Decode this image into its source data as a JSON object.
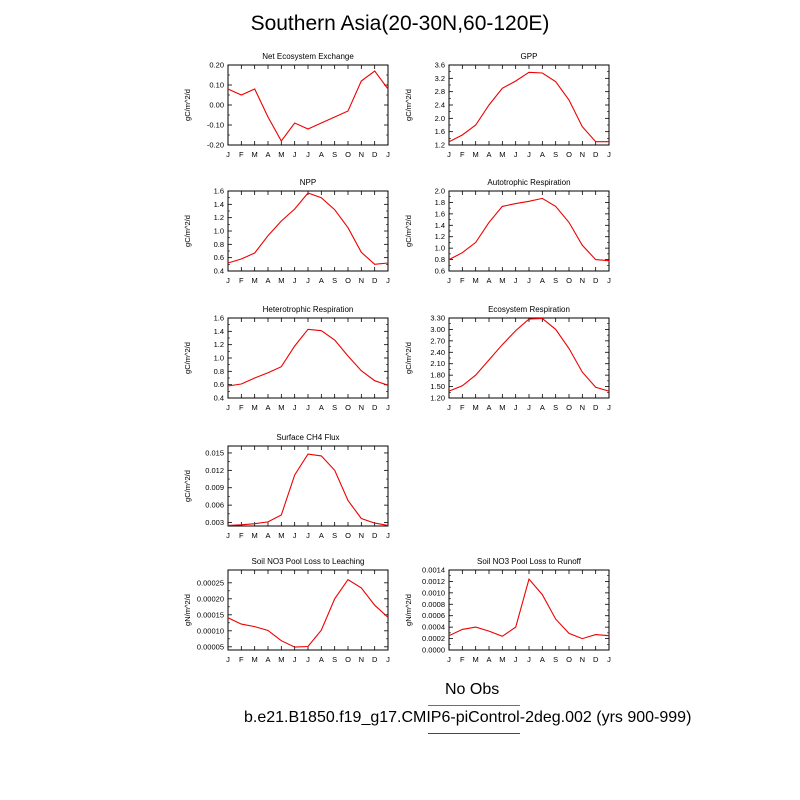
{
  "title": "Southern Asia(20-30N,60-120E)",
  "months": [
    "J",
    "F",
    "M",
    "A",
    "M",
    "J",
    "J",
    "A",
    "S",
    "O",
    "N",
    "D",
    "J"
  ],
  "colors": {
    "model": "#ee0000",
    "obs": "#4d6bdb"
  },
  "legend": {
    "obs_label": "No Obs",
    "model_label": "b.e21.B1850.f19_g17.CMIP6-piControl-2deg.002 (yrs 900-999)"
  },
  "chart_data": [
    {
      "type": "line",
      "title": "Net Ecosystem Exchange",
      "ylabel": "gC/m^2/d",
      "ylim": [
        -0.2,
        0.2
      ],
      "yticks": [
        "-0.20",
        "-0.10",
        "0.00",
        "0.10",
        "0.20"
      ],
      "series": [
        {
          "values": [
            0.08,
            0.05,
            0.08,
            -0.06,
            -0.18,
            -0.09,
            -0.12,
            -0.09,
            -0.06,
            -0.03,
            0.12,
            0.17,
            0.08
          ]
        }
      ]
    },
    {
      "type": "line",
      "title": "GPP",
      "ylabel": "gC/m^2/d",
      "ylim": [
        1.2,
        3.6
      ],
      "yticks": [
        "1.2",
        "1.6",
        "2.0",
        "2.4",
        "2.8",
        "3.2",
        "3.6"
      ],
      "series": [
        {
          "values": [
            1.3,
            1.5,
            1.8,
            2.4,
            2.9,
            3.12,
            3.38,
            3.36,
            3.1,
            2.55,
            1.75,
            1.3,
            1.3
          ]
        }
      ]
    },
    {
      "type": "line",
      "title": "NPP",
      "ylabel": "gC/m^2/d",
      "ylim": [
        0.4,
        1.6
      ],
      "yticks": [
        "0.4",
        "0.6",
        "0.8",
        "1.0",
        "1.2",
        "1.4",
        "1.6"
      ],
      "series": [
        {
          "values": [
            0.52,
            0.58,
            0.67,
            0.93,
            1.15,
            1.33,
            1.57,
            1.5,
            1.32,
            1.05,
            0.68,
            0.5,
            0.52
          ]
        }
      ]
    },
    {
      "type": "line",
      "title": "Autotrophic Respiration",
      "ylabel": "gC/m^2/d",
      "ylim": [
        0.6,
        2.0
      ],
      "yticks": [
        "0.6",
        "0.8",
        "1.0",
        "1.2",
        "1.4",
        "1.6",
        "1.8",
        "2.0"
      ],
      "series": [
        {
          "values": [
            0.8,
            0.92,
            1.1,
            1.45,
            1.73,
            1.78,
            1.82,
            1.87,
            1.73,
            1.45,
            1.05,
            0.8,
            0.78
          ]
        }
      ]
    },
    {
      "type": "line",
      "title": "Heterotrophic Respiration",
      "ylabel": "gC/m^2/d",
      "ylim": [
        0.4,
        1.6
      ],
      "yticks": [
        "0.4",
        "0.6",
        "0.8",
        "1.0",
        "1.2",
        "1.4",
        "1.6"
      ],
      "series": [
        {
          "values": [
            0.58,
            0.61,
            0.7,
            0.78,
            0.87,
            1.18,
            1.43,
            1.41,
            1.27,
            1.03,
            0.81,
            0.66,
            0.59
          ]
        }
      ]
    },
    {
      "type": "line",
      "title": "Ecosystem Respiration",
      "ylabel": "gC/m^2/d",
      "ylim": [
        1.2,
        3.3
      ],
      "yticks": [
        "1.20",
        "1.50",
        "1.80",
        "2.10",
        "2.40",
        "2.70",
        "3.00",
        "3.30"
      ],
      "series": [
        {
          "values": [
            1.38,
            1.52,
            1.8,
            2.2,
            2.6,
            2.97,
            3.27,
            3.29,
            3.0,
            2.5,
            1.88,
            1.48,
            1.38
          ]
        }
      ]
    },
    {
      "type": "line",
      "title": "Surface CH4 Flux",
      "ylabel": "gC/m^2/d",
      "ylim": [
        0.0024,
        0.0162
      ],
      "yticks": [
        "0.003",
        "0.006",
        "0.009",
        "0.012",
        "0.015"
      ],
      "series": [
        {
          "values": [
            0.0025,
            0.0026,
            0.0028,
            0.0031,
            0.0043,
            0.0112,
            0.0148,
            0.0145,
            0.012,
            0.0068,
            0.0037,
            0.0029,
            0.0025
          ]
        }
      ]
    },
    {
      "type": "line",
      "title": "Soil NO3 Pool Loss to Leaching",
      "ylabel": "gN/m^2/d",
      "ylim": [
        4e-05,
        0.00029
      ],
      "yticks": [
        "0.00005",
        "0.00010",
        "0.00015",
        "0.00020",
        "0.00025"
      ],
      "series": [
        {
          "values": [
            0.000141,
            0.000121,
            0.000113,
            0.000101,
            6.9e-05,
            4.9e-05,
            5.1e-05,
            0.000102,
            0.0002,
            0.00026,
            0.000234,
            0.00018,
            0.000142
          ]
        }
      ]
    },
    {
      "type": "line",
      "title": "Soil NO3 Pool Loss to Runoff",
      "ylabel": "gN/m^2/d",
      "ylim": [
        0,
        0.0014
      ],
      "yticks": [
        "0.0000",
        "0.0002",
        "0.0004",
        "0.0006",
        "0.0008",
        "0.0010",
        "0.0012",
        "0.0014"
      ],
      "series": [
        {
          "values": [
            0.00025,
            0.00036,
            0.0004,
            0.00033,
            0.00024,
            0.0004,
            0.00124,
            0.00097,
            0.00054,
            0.00029,
            0.0002,
            0.00027,
            0.00025
          ]
        }
      ]
    }
  ]
}
